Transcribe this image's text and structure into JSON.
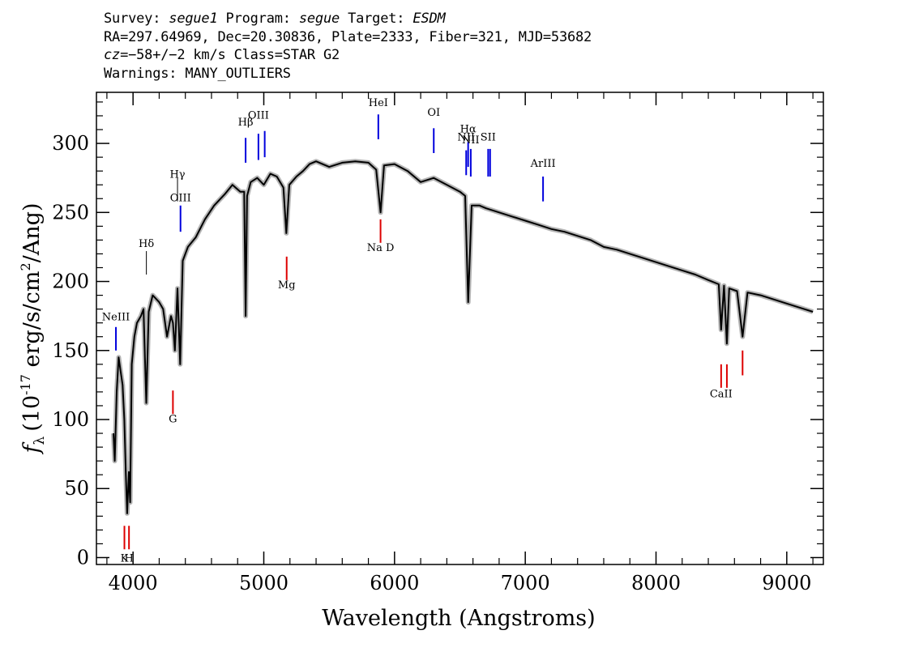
{
  "header": {
    "line1": {
      "survey_label": "Survey: ",
      "survey": "segue1",
      "program_label": " Program: ",
      "program": "segue",
      "target_label": " Target: ",
      "target": "ESDM"
    },
    "line2": "RA=297.64969, Dec=20.30836, Plate=2333, Fiber=321, MJD=53682",
    "line3": {
      "cz": "cz",
      "rest": "=−58+/−2 km/s Class=STAR G2"
    },
    "line4": "Warnings: MANY_OUTLIERS"
  },
  "colors": {
    "emission": "#0000dd",
    "absorption": "#dd0000",
    "spectrum": "#000000",
    "error_band": "#b4b4b4"
  },
  "chart_data": {
    "type": "line",
    "xlabel": "Wavelength (Angstroms)",
    "ylabel_prefix": "f",
    "ylabel_sub": "λ",
    "ylabel_units": "(10",
    "ylabel_exp": "-17",
    "ylabel_units2": " erg/s/cm",
    "ylabel_exp2": "2",
    "ylabel_units3": "/Ang)",
    "xlim": [
      3720,
      9280
    ],
    "ylim": [
      -5,
      337
    ],
    "x_ticks": [
      4000,
      5000,
      6000,
      7000,
      8000,
      9000
    ],
    "y_ticks": [
      0,
      50,
      100,
      150,
      200,
      250,
      300
    ],
    "series": [
      {
        "x": [
          3850,
          3860,
          3875,
          3890,
          3905,
          3920,
          3933,
          3945,
          3955,
          3968,
          3978,
          3990,
          4010,
          4030,
          4060,
          4080,
          4101,
          4120,
          4150,
          4200,
          4230,
          4260,
          4290,
          4305,
          4320,
          4340,
          4360,
          4380,
          4420,
          4480,
          4550,
          4620,
          4700,
          4760,
          4820,
          4850,
          4861,
          4872,
          4900,
          4950,
          5000,
          5050,
          5100,
          5150,
          5172,
          5195,
          5250,
          5300,
          5350,
          5400,
          5500,
          5600,
          5700,
          5800,
          5860,
          5893,
          5920,
          6000,
          6100,
          6200,
          6300,
          6400,
          6500,
          6540,
          6563,
          6590,
          6650,
          6700,
          6800,
          6900,
          7000,
          7100,
          7200,
          7300,
          7400,
          7500,
          7600,
          7700,
          7800,
          7900,
          8000,
          8100,
          8200,
          8300,
          8400,
          8480,
          8498,
          8520,
          8542,
          8560,
          8620,
          8662,
          8700,
          8800,
          8900,
          9000,
          9100,
          9200
        ],
        "y": [
          90,
          70,
          120,
          145,
          135,
          125,
          100,
          60,
          32,
          62,
          40,
          140,
          160,
          170,
          175,
          180,
          112,
          178,
          190,
          185,
          180,
          160,
          175,
          170,
          150,
          195,
          140,
          215,
          225,
          232,
          245,
          255,
          263,
          270,
          265,
          265,
          175,
          262,
          272,
          275,
          270,
          278,
          276,
          268,
          235,
          270,
          276,
          280,
          285,
          287,
          283,
          286,
          287,
          286,
          281,
          250,
          284,
          285,
          280,
          272,
          275,
          270,
          265,
          262,
          185,
          255,
          255,
          253,
          250,
          247,
          244,
          241,
          238,
          236,
          233,
          230,
          225,
          223,
          220,
          217,
          214,
          211,
          208,
          205,
          201,
          198,
          165,
          197,
          155,
          195,
          193,
          160,
          192,
          190,
          187,
          184,
          181,
          178
        ]
      }
    ],
    "line_labels": [
      {
        "text": "NeIII",
        "wave": 3869,
        "label_y": 172,
        "bar": [
          150,
          167
        ],
        "type": "emission"
      },
      {
        "text": "Hδ",
        "wave": 4102,
        "label_y": 225,
        "bar": [
          205,
          222
        ],
        "type": "emission_thin"
      },
      {
        "text": "Hγ",
        "wave": 4340,
        "label_y": 275,
        "bar": [
          258,
          275
        ],
        "type": "emission_thin"
      },
      {
        "text": "OIII",
        "wave": 4363,
        "label_y": 258,
        "bar": [
          236,
          255
        ],
        "type": "emission"
      },
      {
        "text": "Hβ",
        "wave": 4861,
        "label_y": 313,
        "bar": [
          286,
          304
        ],
        "type": "emission"
      },
      {
        "text": "OIII",
        "wave": 4959,
        "label_y": 318,
        "bar": [
          288,
          307
        ],
        "type": "emission"
      },
      {
        "text": "",
        "wave": 5007,
        "label_y": 0,
        "bar": [
          290,
          309
        ],
        "type": "emission"
      },
      {
        "text": "HeI",
        "wave": 5876,
        "label_y": 327,
        "bar": [
          303,
          321
        ],
        "type": "emission"
      },
      {
        "text": "OI",
        "wave": 6300,
        "label_y": 320,
        "bar": [
          293,
          311
        ],
        "type": "emission"
      },
      {
        "text": "NII",
        "wave": 6548,
        "label_y": 302,
        "bar": [
          277,
          295
        ],
        "type": "emission"
      },
      {
        "text": "Hα",
        "wave": 6563,
        "label_y": 308,
        "bar": [
          283,
          301
        ],
        "type": "emission"
      },
      {
        "text": "",
        "wave": 6583,
        "label_y": 0,
        "bar": [
          276,
          296
        ],
        "type": "emission"
      },
      {
        "text": "NII",
        "wave": 6583,
        "label_y": 300,
        "bar": [
          0,
          0
        ],
        "type": "none"
      },
      {
        "text": "SII",
        "wave": 6716,
        "label_y": 302,
        "bar": [
          276,
          296
        ],
        "type": "emission"
      },
      {
        "text": "",
        "wave": 6731,
        "label_y": 0,
        "bar": [
          276,
          296
        ],
        "type": "emission"
      },
      {
        "text": "ArIII",
        "wave": 7136,
        "label_y": 283,
        "bar": [
          258,
          276
        ],
        "type": "emission"
      },
      {
        "text": "K",
        "wave": 3934,
        "label_y": -3,
        "bar": [
          6,
          23
        ],
        "type": "absorption"
      },
      {
        "text": "H",
        "wave": 3969,
        "label_y": -3,
        "bar": [
          6,
          23
        ],
        "type": "absorption"
      },
      {
        "text": "G",
        "wave": 4305,
        "label_y": 98,
        "bar": [
          104,
          121
        ],
        "type": "absorption"
      },
      {
        "text": "Mg",
        "wave": 5175,
        "label_y": 195,
        "bar": [
          201,
          218
        ],
        "type": "absorption"
      },
      {
        "text": "Na D",
        "wave": 5893,
        "label_y": 222,
        "bar": [
          228,
          245
        ],
        "type": "absorption"
      },
      {
        "text": "CaII",
        "wave": 8498,
        "label_y": 116,
        "bar": [
          123,
          140
        ],
        "type": "absorption"
      },
      {
        "text": "",
        "wave": 8542,
        "label_y": 0,
        "bar": [
          123,
          140
        ],
        "type": "absorption"
      },
      {
        "text": "",
        "wave": 8662,
        "label_y": 0,
        "bar": [
          132,
          150
        ],
        "type": "absorption"
      }
    ]
  }
}
